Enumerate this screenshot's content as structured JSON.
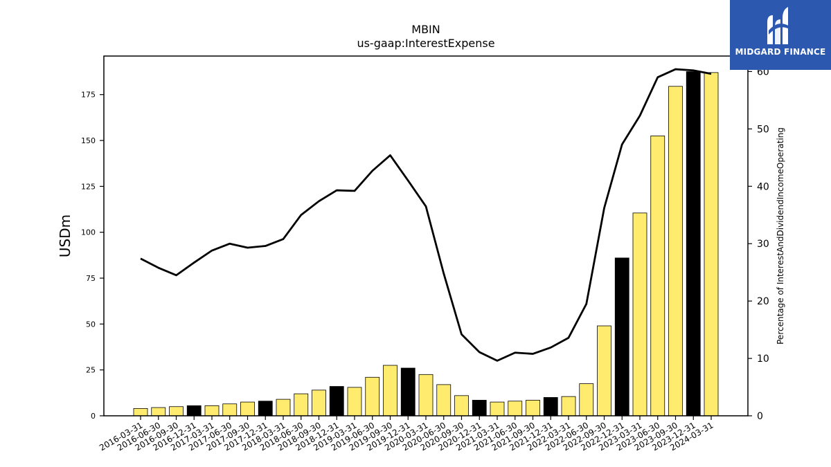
{
  "logo": {
    "text": "MIDGARD FINANCE",
    "bg_color": "#2c58b0",
    "icon": "midgard-logo-icon"
  },
  "chart_data": {
    "type": "bar",
    "title": "MBIN",
    "subtitle": "us-gaap:InterestExpense",
    "ylabel": "USDm",
    "y2label": "Percentage of InterestAndDividendIncomeOperating",
    "ylim": [
      0,
      196
    ],
    "y2lim": [
      0,
      62.7
    ],
    "yticks": [
      0,
      25,
      50,
      75,
      100,
      125,
      150,
      175
    ],
    "y2ticks": [
      0,
      10,
      20,
      30,
      40,
      50,
      60
    ],
    "grid": false,
    "colors": {
      "bar_default": "#ffec6e",
      "bar_highlight": "#000000",
      "line": "#000000"
    },
    "categories": [
      "2016-03-31",
      "2016-06-30",
      "2016-09-30",
      "2016-12-31",
      "2017-03-31",
      "2017-06-30",
      "2017-09-30",
      "2017-12-31",
      "2018-03-31",
      "2018-06-30",
      "2018-09-30",
      "2018-12-31",
      "2019-03-31",
      "2019-06-30",
      "2019-09-30",
      "2019-12-31",
      "2020-03-31",
      "2020-06-30",
      "2020-09-30",
      "2020-12-31",
      "2021-03-31",
      "2021-06-30",
      "2021-09-30",
      "2021-12-31",
      "2022-03-31",
      "2022-06-30",
      "2022-09-30",
      "2022-12-31",
      "2023-03-31",
      "2023-06-30",
      "2023-09-30",
      "2023-12-31",
      "2024-03-31"
    ],
    "series": [
      {
        "kind": "bar",
        "axis": "left",
        "values": [
          4.0,
          4.5,
          5.0,
          5.5,
          5.5,
          6.5,
          7.5,
          8.0,
          9.0,
          12.0,
          14.0,
          16.0,
          15.5,
          21.0,
          27.5,
          26.0,
          22.5,
          17.0,
          11.0,
          8.5,
          7.5,
          8.0,
          8.5,
          10.0,
          10.5,
          17.5,
          49.0,
          86.0,
          110.5,
          152.5,
          179.5,
          187.5,
          187.0
        ],
        "highlight": [
          false,
          false,
          false,
          true,
          false,
          false,
          false,
          true,
          false,
          false,
          false,
          true,
          false,
          false,
          false,
          true,
          false,
          false,
          false,
          true,
          false,
          false,
          false,
          true,
          false,
          false,
          false,
          true,
          false,
          false,
          false,
          true,
          false
        ]
      },
      {
        "kind": "line",
        "axis": "right",
        "values": [
          27.4,
          25.8,
          24.5,
          26.7,
          28.8,
          30.0,
          29.3,
          29.6,
          30.8,
          35.0,
          37.4,
          39.3,
          39.2,
          42.7,
          45.4,
          41.0,
          36.5,
          24.8,
          14.2,
          11.1,
          9.6,
          11.0,
          10.8,
          11.9,
          13.6,
          19.5,
          36.2,
          47.3,
          52.3,
          59.0,
          60.4,
          60.2,
          59.6
        ]
      }
    ]
  }
}
